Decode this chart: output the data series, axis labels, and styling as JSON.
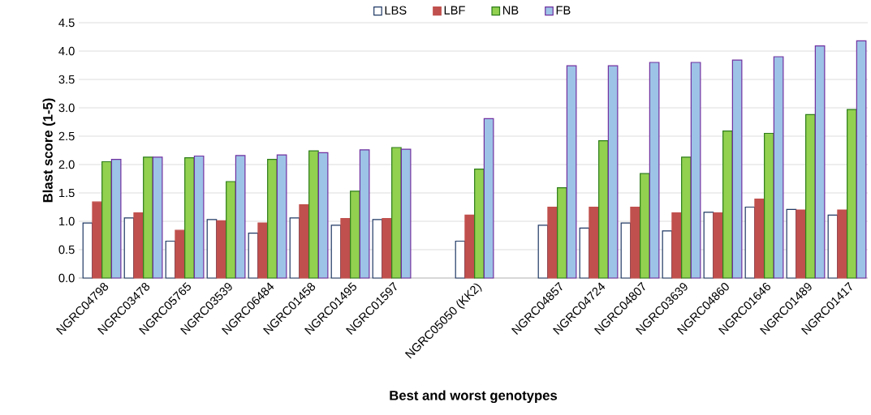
{
  "chart_data": {
    "type": "bar",
    "xlabel": "Best and worst genotypes",
    "ylabel": "Blast score (1-5)",
    "categories": [
      "NGRC04798",
      "NGRC03478",
      "NGRC05765",
      "NGRC03539",
      "NGRC06484",
      "NGRC01458",
      "NGRC01495",
      "NGRC01597",
      null,
      "NGRC05050 (KK2)",
      null,
      "NGRC04857",
      "NGRC04724",
      "NGRC04807",
      "NGRC03639",
      "NGRC04860",
      "NGRC01646",
      "NGRC01489",
      "NGRC01417"
    ],
    "series": [
      {
        "name": "LBS",
        "color": "#ffffff",
        "values": [
          0.97,
          1.06,
          0.65,
          1.03,
          0.79,
          1.06,
          0.93,
          1.03,
          null,
          0.65,
          null,
          0.93,
          0.88,
          0.97,
          0.83,
          1.16,
          1.25,
          1.21,
          1.11
        ]
      },
      {
        "name": "LBF",
        "color": "#c0504d",
        "values": [
          1.34,
          1.15,
          0.84,
          1.01,
          0.97,
          1.29,
          1.05,
          1.05,
          null,
          1.11,
          null,
          1.25,
          1.25,
          1.25,
          1.15,
          1.15,
          1.39,
          1.2,
          1.2
        ]
      },
      {
        "name": "NB",
        "color": "#92d050",
        "values": [
          2.05,
          2.13,
          2.12,
          1.7,
          2.09,
          2.24,
          1.53,
          2.3,
          null,
          1.92,
          null,
          1.59,
          2.42,
          1.84,
          2.13,
          2.59,
          2.55,
          2.88,
          2.97
        ]
      },
      {
        "name": "FB",
        "color": "#9dc3e6",
        "values": [
          2.09,
          2.13,
          2.15,
          2.16,
          2.17,
          2.21,
          2.26,
          2.27,
          null,
          2.81,
          null,
          3.74,
          3.74,
          3.8,
          3.8,
          3.84,
          3.9,
          4.09,
          4.18
        ]
      }
    ],
    "ylim": [
      0,
      4.5
    ],
    "yticks": [
      {
        "value": 0,
        "label": "0.0"
      },
      0.5,
      {
        "value": 1,
        "label": "1.0"
      },
      1.5,
      {
        "value": 2,
        "label": "2.0"
      },
      2.5,
      {
        "value": 3,
        "label": "3.0"
      },
      3.5,
      {
        "value": 4,
        "label": "4.0"
      },
      4.5
    ],
    "grid": "y",
    "legend": "top"
  }
}
